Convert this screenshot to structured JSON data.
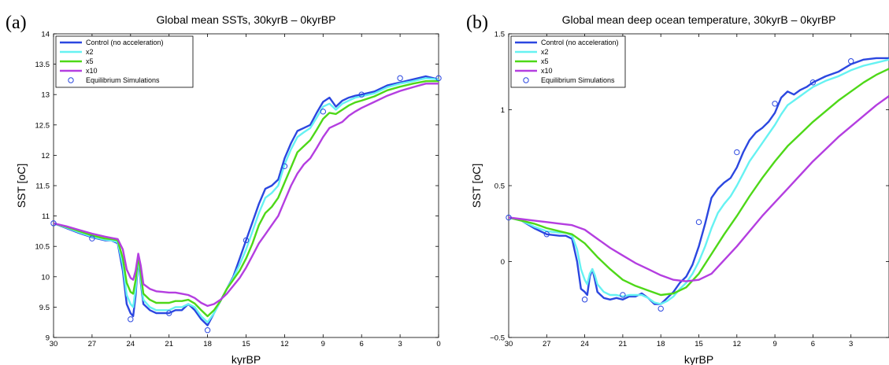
{
  "figure": {
    "panel_labels": [
      "(a)",
      "(b)"
    ]
  },
  "chart_data": [
    {
      "type": "line",
      "panel": "(a)",
      "title": "Global mean SSTs, 30kyrB – 0kyrBP",
      "xlabel": "kyrBP",
      "ylabel": "SST [oC]",
      "xlim": [
        30,
        0
      ],
      "x_reversed": true,
      "ylim": [
        9,
        14
      ],
      "xticks": [
        30,
        27,
        24,
        21,
        18,
        15,
        12,
        9,
        6,
        3,
        0
      ],
      "yticks": [
        9,
        9.5,
        10,
        10.5,
        11,
        11.5,
        12,
        12.5,
        13,
        13.5,
        14
      ],
      "ytick_labels": [
        "9",
        "9.5",
        "10",
        "10.5",
        "11",
        "11.5",
        "12",
        "12.5",
        "13",
        "13.5",
        "14"
      ],
      "grid": false,
      "legend_position": "top-left",
      "series": [
        {
          "name": "Control (no acceleration)",
          "color": "#2b47e0",
          "x": [
            30,
            29,
            28,
            27,
            26,
            25.5,
            25,
            24.6,
            24.3,
            24,
            23.8,
            23.6,
            23.4,
            23.2,
            23,
            22.5,
            22,
            21.5,
            21,
            20.5,
            20,
            19.5,
            19,
            18.5,
            18,
            17.5,
            17,
            16.5,
            16,
            15.5,
            15,
            14.5,
            14,
            13.5,
            13,
            12.5,
            12,
            11.5,
            11,
            10.5,
            10,
            9.5,
            9,
            8.5,
            8,
            7.5,
            7,
            6.5,
            6,
            5,
            4,
            3,
            2,
            1,
            0
          ],
          "y": [
            10.88,
            10.8,
            10.72,
            10.65,
            10.6,
            10.6,
            10.55,
            10.1,
            9.55,
            9.4,
            9.35,
            9.7,
            10.3,
            9.9,
            9.55,
            9.45,
            9.4,
            9.4,
            9.4,
            9.45,
            9.45,
            9.55,
            9.45,
            9.3,
            9.2,
            9.4,
            9.6,
            9.8,
            10,
            10.3,
            10.6,
            10.9,
            11.2,
            11.45,
            11.5,
            11.6,
            11.95,
            12.2,
            12.4,
            12.45,
            12.5,
            12.7,
            12.88,
            12.95,
            12.8,
            12.9,
            12.95,
            12.98,
            13,
            13.05,
            13.15,
            13.2,
            13.25,
            13.3,
            13.25
          ]
        },
        {
          "name": "x2",
          "color": "#66f2f2",
          "x": [
            30,
            29,
            28,
            27,
            26,
            25.5,
            25,
            24.6,
            24.3,
            24,
            23.8,
            23.6,
            23.4,
            23.2,
            23,
            22.5,
            22,
            21.5,
            21,
            20.5,
            20,
            19.5,
            19,
            18.5,
            18,
            17.5,
            17,
            16.5,
            16,
            15.5,
            15,
            14.5,
            14,
            13.5,
            13,
            12.5,
            12,
            11.5,
            11,
            10.5,
            10,
            9.5,
            9,
            8.5,
            8,
            7.5,
            7,
            6.5,
            6,
            5,
            4,
            3,
            2,
            1,
            0
          ],
          "y": [
            10.88,
            10.81,
            10.73,
            10.66,
            10.61,
            10.6,
            10.57,
            10.2,
            9.7,
            9.55,
            9.5,
            9.8,
            10.32,
            9.95,
            9.62,
            9.5,
            9.45,
            9.45,
            9.45,
            9.5,
            9.5,
            9.55,
            9.5,
            9.35,
            9.25,
            9.4,
            9.6,
            9.8,
            9.98,
            10.2,
            10.45,
            10.75,
            11.05,
            11.3,
            11.38,
            11.5,
            11.85,
            12.1,
            12.3,
            12.38,
            12.45,
            12.62,
            12.8,
            12.85,
            12.75,
            12.85,
            12.9,
            12.95,
            12.97,
            13.02,
            13.12,
            13.18,
            13.22,
            13.27,
            13.25
          ]
        },
        {
          "name": "x5",
          "color": "#4ed818",
          "x": [
            30,
            29,
            28,
            27,
            26,
            25.5,
            25,
            24.6,
            24.3,
            24,
            23.8,
            23.6,
            23.4,
            23.2,
            23,
            22.5,
            22,
            21.5,
            21,
            20.5,
            20,
            19.5,
            19,
            18.5,
            18,
            17.5,
            17,
            16.5,
            16,
            15.5,
            15,
            14.5,
            14,
            13.5,
            13,
            12.5,
            12,
            11.5,
            11,
            10.5,
            10,
            9.5,
            9,
            8.5,
            8,
            7.5,
            7,
            6.5,
            6,
            5,
            4,
            3,
            2,
            1,
            0
          ],
          "y": [
            10.88,
            10.82,
            10.75,
            10.68,
            10.63,
            10.62,
            10.6,
            10.3,
            9.9,
            9.75,
            9.72,
            9.95,
            10.35,
            10.05,
            9.72,
            9.62,
            9.57,
            9.57,
            9.57,
            9.6,
            9.6,
            9.62,
            9.56,
            9.45,
            9.35,
            9.45,
            9.6,
            9.8,
            9.95,
            10.1,
            10.3,
            10.55,
            10.85,
            11.05,
            11.15,
            11.3,
            11.55,
            11.8,
            12.05,
            12.15,
            12.25,
            12.42,
            12.6,
            12.7,
            12.68,
            12.75,
            12.82,
            12.87,
            12.9,
            12.97,
            13.07,
            13.13,
            13.18,
            13.22,
            13.22
          ]
        },
        {
          "name": "x10",
          "color": "#b43ee0",
          "x": [
            30,
            29,
            28,
            27,
            26,
            25.5,
            25,
            24.6,
            24.3,
            24,
            23.8,
            23.6,
            23.4,
            23.2,
            23,
            22.5,
            22,
            21.5,
            21,
            20.5,
            20,
            19.5,
            19,
            18.5,
            18,
            17.5,
            17,
            16.5,
            16,
            15.5,
            15,
            14.5,
            14,
            13.5,
            13,
            12.5,
            12,
            11.5,
            11,
            10.5,
            10,
            9.5,
            9,
            8.5,
            8,
            7.5,
            7,
            6.5,
            6,
            5,
            4,
            3,
            2,
            1,
            0
          ],
          "y": [
            10.88,
            10.83,
            10.77,
            10.71,
            10.66,
            10.64,
            10.62,
            10.45,
            10.12,
            9.98,
            9.95,
            10.1,
            10.38,
            10.18,
            9.88,
            9.8,
            9.76,
            9.75,
            9.74,
            9.74,
            9.72,
            9.7,
            9.65,
            9.57,
            9.52,
            9.55,
            9.62,
            9.72,
            9.85,
            9.98,
            10.15,
            10.35,
            10.55,
            10.7,
            10.85,
            11,
            11.25,
            11.5,
            11.7,
            11.85,
            11.95,
            12.12,
            12.3,
            12.45,
            12.5,
            12.55,
            12.65,
            12.72,
            12.78,
            12.88,
            12.98,
            13.06,
            13.12,
            13.18,
            13.18
          ]
        }
      ],
      "markers": {
        "name": "Equilibrium Simulations",
        "color": "#2b47e0",
        "x": [
          30,
          27,
          24,
          21,
          18,
          15,
          12,
          9,
          6,
          3,
          0
        ],
        "y": [
          10.88,
          10.63,
          9.3,
          9.4,
          9.12,
          10.6,
          11.82,
          12.72,
          13,
          13.27,
          13.27
        ]
      }
    },
    {
      "type": "line",
      "panel": "(b)",
      "title": "Global mean deep ocean temperature, 30kyrB – 0kyrBP",
      "xlabel": "kyrBP",
      "ylabel": "SST [oC]",
      "xlim": [
        30,
        0
      ],
      "x_reversed": true,
      "ylim": [
        -0.5,
        1.5
      ],
      "xticks": [
        30,
        27,
        24,
        21,
        18,
        15,
        12,
        9,
        6,
        3
      ],
      "yticks": [
        -0.5,
        0,
        0.5,
        1,
        1.5
      ],
      "ytick_labels": [
        "−0.5",
        "0",
        "0.5",
        "1",
        "1.5"
      ],
      "grid": false,
      "legend_position": "top-left",
      "series": [
        {
          "name": "Control (no acceleration)",
          "color": "#2b47e0",
          "x": [
            30,
            29,
            28,
            27,
            26,
            25.5,
            25,
            24.6,
            24.3,
            24,
            23.8,
            23.6,
            23.4,
            23.2,
            23,
            22.5,
            22,
            21.5,
            21,
            20.5,
            20,
            19.5,
            19,
            18.5,
            18,
            17.5,
            17,
            16.5,
            16,
            15.5,
            15,
            14.5,
            14,
            13.5,
            13,
            12.5,
            12,
            11.5,
            11,
            10.5,
            10,
            9.5,
            9,
            8.5,
            8,
            7.5,
            7,
            6.5,
            6,
            5,
            4,
            3,
            2,
            1,
            0
          ],
          "y": [
            0.29,
            0.27,
            0.22,
            0.18,
            0.17,
            0.17,
            0.15,
            0,
            -0.18,
            -0.2,
            -0.22,
            -0.1,
            -0.05,
            -0.12,
            -0.2,
            -0.24,
            -0.25,
            -0.24,
            -0.25,
            -0.23,
            -0.23,
            -0.21,
            -0.24,
            -0.28,
            -0.28,
            -0.24,
            -0.2,
            -0.14,
            -0.1,
            -0.02,
            0.1,
            0.25,
            0.42,
            0.48,
            0.52,
            0.55,
            0.62,
            0.72,
            0.8,
            0.85,
            0.88,
            0.92,
            0.98,
            1.08,
            1.12,
            1.1,
            1.13,
            1.15,
            1.18,
            1.22,
            1.25,
            1.3,
            1.33,
            1.34,
            1.34
          ]
        },
        {
          "name": "x2",
          "color": "#66f2f2",
          "x": [
            30,
            29,
            28,
            27,
            26,
            25.5,
            25,
            24.6,
            24.3,
            24,
            23.8,
            23.6,
            23.4,
            23.2,
            23,
            22.5,
            22,
            21.5,
            21,
            20.5,
            20,
            19.5,
            19,
            18.5,
            18,
            17.5,
            17,
            16.5,
            16,
            15.5,
            15,
            14.5,
            14,
            13.5,
            13,
            12.5,
            12,
            11.5,
            11,
            10.5,
            10,
            9.5,
            9,
            8.5,
            8,
            7.5,
            7,
            6.5,
            6,
            5,
            4,
            3,
            2,
            1,
            0
          ],
          "y": [
            0.29,
            0.27,
            0.23,
            0.2,
            0.19,
            0.19,
            0.17,
            0.08,
            -0.05,
            -0.12,
            -0.15,
            -0.08,
            -0.05,
            -0.09,
            -0.15,
            -0.2,
            -0.22,
            -0.22,
            -0.23,
            -0.22,
            -0.22,
            -0.22,
            -0.24,
            -0.27,
            -0.28,
            -0.26,
            -0.23,
            -0.18,
            -0.14,
            -0.08,
            0,
            0.1,
            0.22,
            0.32,
            0.38,
            0.43,
            0.5,
            0.58,
            0.66,
            0.72,
            0.78,
            0.84,
            0.9,
            0.97,
            1.03,
            1.06,
            1.09,
            1.12,
            1.15,
            1.19,
            1.22,
            1.26,
            1.29,
            1.31,
            1.33
          ]
        },
        {
          "name": "x5",
          "color": "#4ed818",
          "x": [
            30,
            29,
            28,
            27,
            26,
            25,
            24,
            23,
            22,
            21,
            20,
            19,
            18,
            17,
            16,
            15,
            14,
            13,
            12,
            11,
            10,
            9,
            8,
            7,
            6,
            5,
            4,
            3,
            2,
            1,
            0
          ],
          "y": [
            0.29,
            0.27,
            0.25,
            0.22,
            0.2,
            0.18,
            0.12,
            0.03,
            -0.05,
            -0.12,
            -0.16,
            -0.19,
            -0.22,
            -0.21,
            -0.17,
            -0.08,
            0.05,
            0.18,
            0.3,
            0.43,
            0.55,
            0.66,
            0.76,
            0.84,
            0.92,
            0.99,
            1.06,
            1.12,
            1.18,
            1.23,
            1.27
          ]
        },
        {
          "name": "x10",
          "color": "#b43ee0",
          "x": [
            30,
            29,
            28,
            27,
            26,
            25,
            24,
            23,
            22,
            21,
            20,
            19,
            18,
            17,
            16,
            15,
            14,
            13,
            12,
            11,
            10,
            9,
            8,
            7,
            6,
            5,
            4,
            3,
            2,
            1,
            0
          ],
          "y": [
            0.29,
            0.28,
            0.27,
            0.26,
            0.25,
            0.24,
            0.21,
            0.15,
            0.09,
            0.04,
            -0.01,
            -0.05,
            -0.09,
            -0.12,
            -0.13,
            -0.12,
            -0.08,
            0.01,
            0.1,
            0.2,
            0.3,
            0.39,
            0.48,
            0.57,
            0.66,
            0.74,
            0.82,
            0.89,
            0.96,
            1.03,
            1.09
          ]
        }
      ],
      "markers": {
        "name": "Equilibrium Simulations",
        "color": "#2b47e0",
        "x": [
          30,
          27,
          24,
          21,
          18,
          15,
          12,
          9,
          6,
          3
        ],
        "y": [
          0.29,
          0.18,
          -0.25,
          -0.22,
          -0.31,
          0.26,
          0.72,
          1.04,
          1.18,
          1.32
        ]
      }
    }
  ]
}
